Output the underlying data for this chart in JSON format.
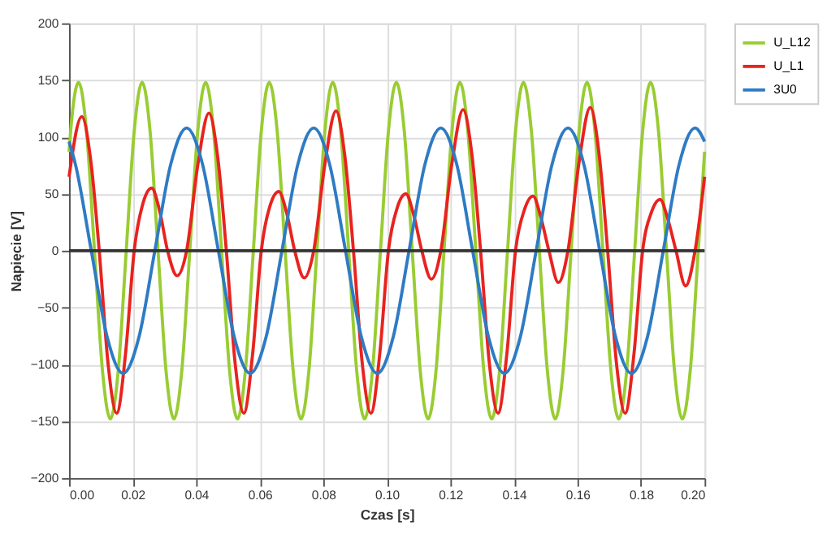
{
  "chart_data": {
    "type": "line",
    "xlabel": "Czas [s]",
    "ylabel": "Napięcie [V]",
    "xlim": [
      0,
      0.2
    ],
    "ylim": [
      -200,
      200
    ],
    "xticks": [
      {
        "value": 0,
        "label": "0.00"
      },
      {
        "value": 0.02,
        "label": "0.02"
      },
      {
        "value": 0.04,
        "label": "0.04"
      },
      {
        "value": 0.06,
        "label": "0.06"
      },
      {
        "value": 0.08,
        "label": "0.08"
      },
      {
        "value": 0.1,
        "label": "0.10"
      },
      {
        "value": 0.12,
        "label": "0.12"
      },
      {
        "value": 0.14,
        "label": "0.14"
      },
      {
        "value": 0.16,
        "label": "0.16"
      },
      {
        "value": 0.18,
        "label": "0.18"
      },
      {
        "value": 0.2,
        "label": "0.20"
      }
    ],
    "yticks": [
      -200,
      -150,
      -100,
      -50,
      0,
      50,
      100,
      150,
      200
    ],
    "grid": true,
    "legend": "right",
    "marker": "none",
    "line_style": "solid",
    "ref_lines": [
      {
        "axis": "y",
        "value": 0,
        "color": "#333333"
      }
    ],
    "series": [
      {
        "name": "U_L12",
        "color": "#99cc33",
        "x": [
          0,
          0.0005,
          0.003,
          0.0055,
          0.008,
          0.0105,
          0.013,
          0.0155,
          0.018,
          0.0205,
          0.023,
          0.0255,
          0.028,
          0.0305,
          0.033,
          0.0355,
          0.038,
          0.0405,
          0.043,
          0.0455,
          0.048,
          0.0505,
          0.053,
          0.0555,
          0.058,
          0.0605,
          0.063,
          0.0655,
          0.068,
          0.0705,
          0.073,
          0.0755,
          0.078,
          0.0805,
          0.083,
          0.0855,
          0.088,
          0.0905,
          0.093,
          0.0955,
          0.098,
          0.1005,
          0.103,
          0.1055,
          0.108,
          0.1105,
          0.113,
          0.1155,
          0.118,
          0.1205,
          0.123,
          0.1255,
          0.128,
          0.1305,
          0.133,
          0.1355,
          0.138,
          0.1405,
          0.143,
          0.1455,
          0.148,
          0.1505,
          0.153,
          0.1555,
          0.158,
          0.1605,
          0.163,
          0.1655,
          0.168,
          0.1705,
          0.173,
          0.1755,
          0.178,
          0.1805,
          0.183,
          0.1855,
          0.188,
          0.1905,
          0.193,
          0.1955,
          0.198,
          0.2
        ],
        "values": [
          87,
          105,
          148,
          105,
          0,
          -105,
          -148,
          -105,
          0,
          105,
          148,
          105,
          0,
          -105,
          -148,
          -105,
          0,
          105,
          148,
          105,
          0,
          -105,
          -148,
          -105,
          0,
          105,
          148,
          105,
          0,
          -105,
          -148,
          -105,
          0,
          105,
          148,
          105,
          0,
          -105,
          -148,
          -105,
          0,
          105,
          148,
          105,
          0,
          -105,
          -148,
          -105,
          0,
          105,
          148,
          105,
          0,
          -105,
          -148,
          -105,
          0,
          105,
          148,
          105,
          0,
          -105,
          -148,
          -105,
          0,
          105,
          148,
          105,
          0,
          -105,
          -148,
          -105,
          0,
          105,
          148,
          105,
          0,
          -105,
          -148,
          -105,
          0,
          87
        ]
      },
      {
        "name": "U_L1",
        "color": "#e8231f",
        "x": [
          0,
          0.004,
          0.0068,
          0.0095,
          0.0123,
          0.015,
          0.0178,
          0.0205,
          0.0233,
          0.026,
          0.0285,
          0.031,
          0.034,
          0.037,
          0.0405,
          0.044,
          0.0468,
          0.0495,
          0.0523,
          0.055,
          0.0578,
          0.0605,
          0.0633,
          0.066,
          0.0685,
          0.071,
          0.074,
          0.077,
          0.0805,
          0.084,
          0.0868,
          0.0895,
          0.0923,
          0.095,
          0.0978,
          0.1005,
          0.1033,
          0.106,
          0.1085,
          0.111,
          0.114,
          0.117,
          0.1205,
          0.124,
          0.1268,
          0.1295,
          0.1323,
          0.135,
          0.1378,
          0.1405,
          0.1433,
          0.146,
          0.1485,
          0.151,
          0.154,
          0.157,
          0.1605,
          0.164,
          0.1668,
          0.1695,
          0.1723,
          0.175,
          0.1778,
          0.1805,
          0.1833,
          0.186,
          0.1885,
          0.191,
          0.194,
          0.197,
          0.2
        ],
        "values": [
          65,
          118,
          80,
          0,
          -100,
          -143,
          -90,
          0,
          42,
          55,
          35,
          0,
          -22,
          0,
          75,
          121,
          82,
          0,
          -100,
          -143,
          -90,
          0,
          40,
          52,
          33,
          0,
          -24,
          0,
          76,
          123,
          83,
          0,
          -100,
          -143,
          -90,
          0,
          38,
          50,
          31,
          0,
          -25,
          0,
          77,
          124,
          84,
          0,
          -100,
          -143,
          -90,
          0,
          36,
          48,
          29,
          0,
          -28,
          0,
          78,
          126,
          85,
          0,
          -100,
          -143,
          -90,
          0,
          34,
          45,
          27,
          0,
          -31,
          0,
          65
        ]
      },
      {
        "name": "3U0",
        "color": "#2e7bc4",
        "x": [
          0,
          0.002,
          0.007,
          0.012,
          0.017,
          0.022,
          0.027,
          0.032,
          0.037,
          0.042,
          0.047,
          0.052,
          0.057,
          0.062,
          0.067,
          0.072,
          0.077,
          0.082,
          0.087,
          0.092,
          0.097,
          0.102,
          0.107,
          0.112,
          0.117,
          0.122,
          0.127,
          0.132,
          0.137,
          0.142,
          0.147,
          0.152,
          0.157,
          0.162,
          0.167,
          0.172,
          0.177,
          0.182,
          0.187,
          0.192,
          0.197,
          0.2
        ],
        "values": [
          96,
          76,
          0,
          -76,
          -108,
          -76,
          0,
          76,
          108,
          76,
          0,
          -76,
          -108,
          -76,
          0,
          76,
          108,
          76,
          0,
          -76,
          -108,
          -76,
          0,
          76,
          108,
          76,
          0,
          -76,
          -108,
          -76,
          0,
          76,
          108,
          76,
          0,
          -76,
          -108,
          -76,
          0,
          76,
          108,
          96
        ]
      }
    ]
  }
}
